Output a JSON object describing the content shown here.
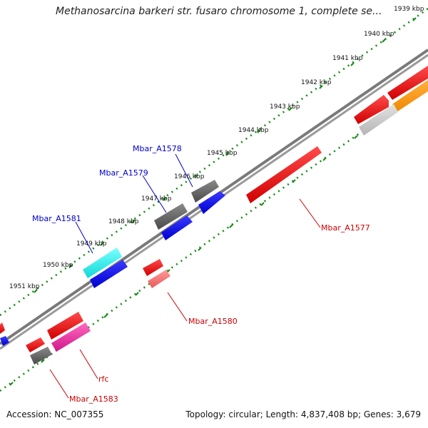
{
  "title": "Methanosarcina barkeri str. fusaro chromosome 1, complete se...",
  "footer": {
    "accession": "Accession: NC_007355",
    "topology": "Topology: circular; Length: 4,837,408 bp; Genes: 3,679"
  },
  "colors": {
    "backbone": "#7a7a7a",
    "tick_dots": "#138a13",
    "forward_label": "#0000cc",
    "reverse_label": "#cc0000"
  },
  "scale_ticks": [
    {
      "label": "1939 kbp"
    },
    {
      "label": "1940 kbp"
    },
    {
      "label": "1941 kbp"
    },
    {
      "label": "1942 kbp"
    },
    {
      "label": "1943 kbp"
    },
    {
      "label": "1944 kbp"
    },
    {
      "label": "1945 kbp"
    },
    {
      "label": "1946 kbp"
    },
    {
      "label": "1947 kbp"
    },
    {
      "label": "1948 kbp"
    },
    {
      "label": "1949 kbp"
    },
    {
      "label": "1950 kbp"
    },
    {
      "label": "1951 kbp"
    }
  ],
  "gene_labels": {
    "mbar_a1578": "Mbar_A1578",
    "mbar_a1579": "Mbar_A1579",
    "mbar_a1581": "Mbar_A1581",
    "mbar_a1577": "Mbar_A1577",
    "mbar_a1580": "Mbar_A1580",
    "rfc": "rfc",
    "mbar_a1583": "Mbar_A1583"
  }
}
